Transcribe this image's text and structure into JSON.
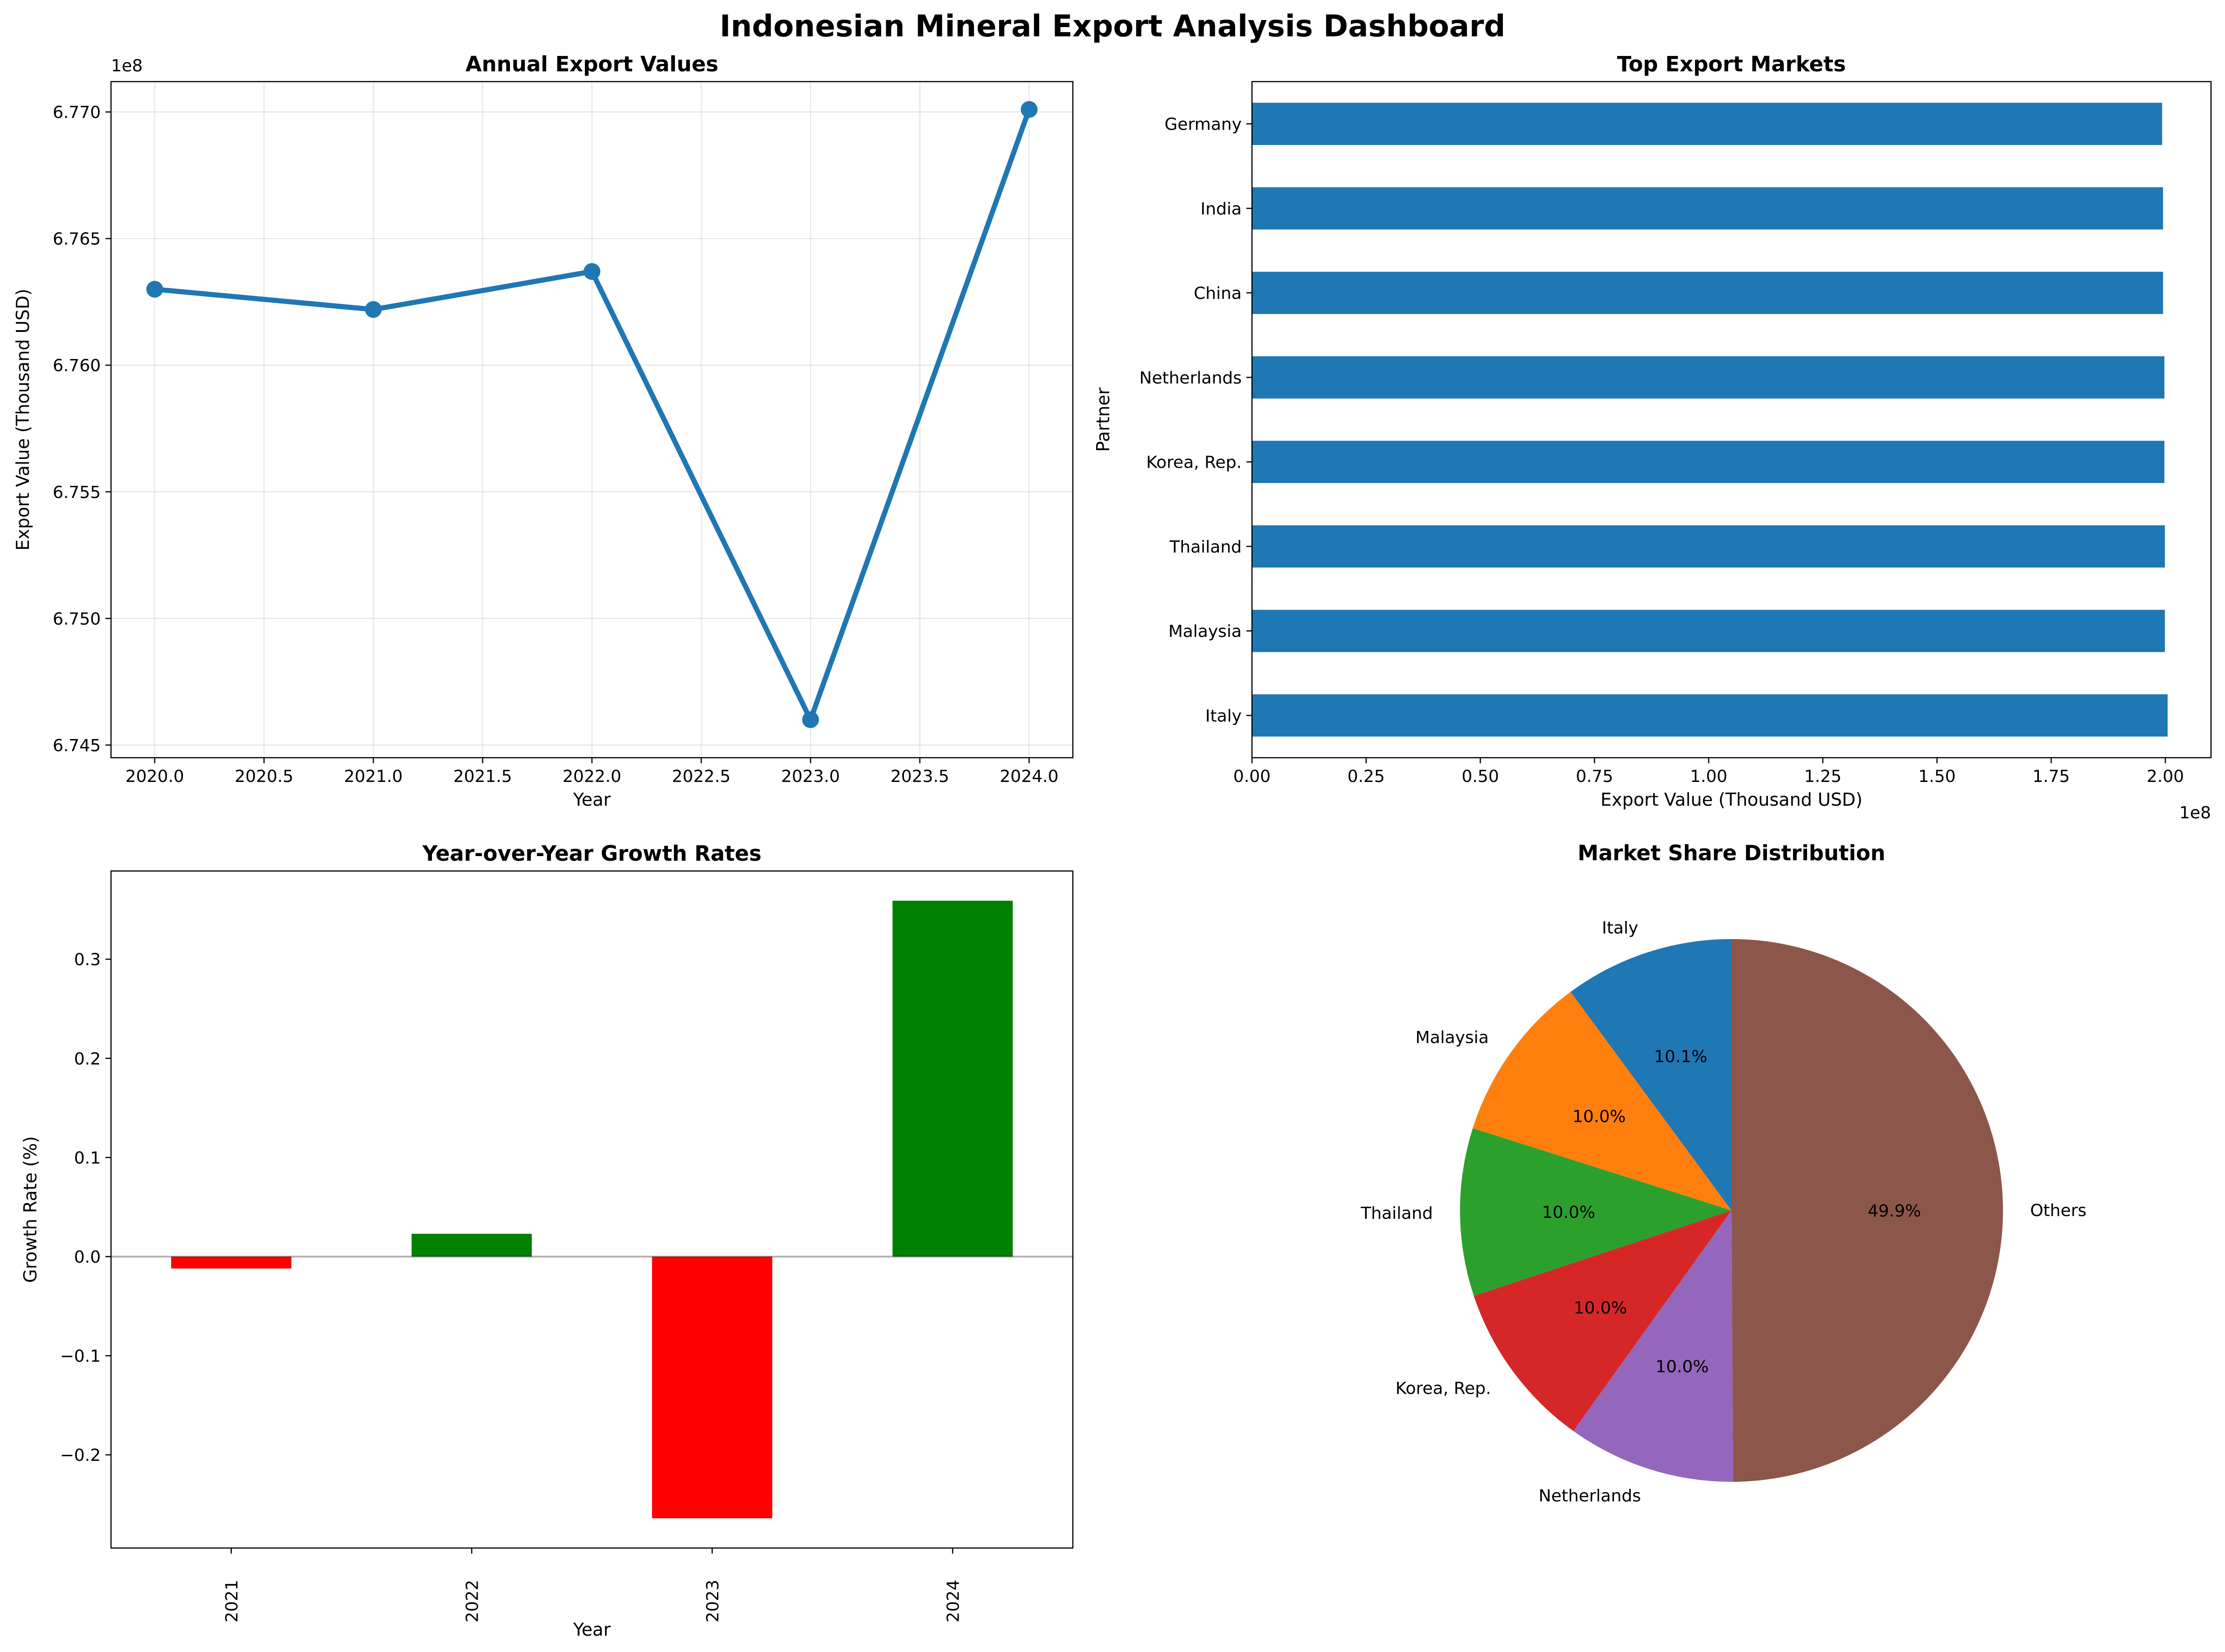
{
  "figure": {
    "title": "Indonesian Mineral Export Analysis Dashboard"
  },
  "chart_data": [
    {
      "type": "line",
      "title": "Annual Export Values",
      "xlabel": "Year",
      "ylabel": "Export Value (Thousand USD)",
      "y_offset_label": "1e8",
      "color": "#1f77b4",
      "x": [
        2020,
        2021,
        2022,
        2023,
        2024
      ],
      "values": [
        6.763,
        6.7622,
        6.7637,
        6.746,
        6.7701
      ],
      "xlim": [
        2019.8,
        2024.2
      ],
      "ylim": [
        6.7445,
        6.7712
      ],
      "xticks": [
        2020.0,
        2020.5,
        2021.0,
        2021.5,
        2022.0,
        2022.5,
        2023.0,
        2023.5,
        2024.0
      ],
      "xtick_labels": [
        "2020.0",
        "2020.5",
        "2021.0",
        "2021.5",
        "2022.0",
        "2022.5",
        "2023.0",
        "2023.5",
        "2024.0"
      ],
      "yticks": [
        6.745,
        6.75,
        6.755,
        6.76,
        6.765,
        6.77
      ],
      "ytick_labels": [
        "6.745",
        "6.750",
        "6.755",
        "6.760",
        "6.765",
        "6.770"
      ],
      "grid": true
    },
    {
      "type": "bar",
      "orientation": "horizontal",
      "title": "Top Export Markets",
      "xlabel": "Export Value (Thousand USD)",
      "ylabel": "Partner",
      "x_offset_label": "1e8",
      "color": "#1f77b4",
      "categories": [
        "Italy",
        "Malaysia",
        "Thailand",
        "Korea, Rep.",
        "Netherlands",
        "China",
        "India",
        "Germany"
      ],
      "values": [
        2.005,
        1.999,
        1.999,
        1.998,
        1.998,
        1.995,
        1.995,
        1.993
      ],
      "xlim": [
        0,
        2.1
      ],
      "xticks": [
        0,
        0.25,
        0.5,
        0.75,
        1.0,
        1.25,
        1.5,
        1.75,
        2.0
      ],
      "xtick_labels": [
        "0.00",
        "0.25",
        "0.50",
        "0.75",
        "1.00",
        "1.25",
        "1.50",
        "1.75",
        "2.00"
      ],
      "grid": false
    },
    {
      "type": "bar",
      "title": "Year-over-Year Growth Rates",
      "xlabel": "Year",
      "ylabel": "Growth Rate (%)",
      "positive_color": "#008000",
      "negative_color": "#ff0000",
      "categories": [
        "2021",
        "2022",
        "2023",
        "2024"
      ],
      "values": [
        -0.012,
        0.023,
        -0.264,
        0.359
      ],
      "ylim": [
        -0.294,
        0.389
      ],
      "yticks": [
        -0.2,
        -0.1,
        0.0,
        0.1,
        0.2,
        0.3
      ],
      "ytick_labels": [
        "−0.2",
        "−0.1",
        "0.0",
        "0.1",
        "0.2",
        "0.3"
      ],
      "grid": false
    },
    {
      "type": "pie",
      "title": "Market Share Distribution",
      "start_angle_deg": 90,
      "direction": "counterclockwise",
      "slices": [
        {
          "label": "Italy",
          "value": 10.1,
          "pct_label": "10.1%",
          "color": "#1f77b4"
        },
        {
          "label": "Malaysia",
          "value": 10.0,
          "pct_label": "10.0%",
          "color": "#ff7f0e"
        },
        {
          "label": "Thailand",
          "value": 10.0,
          "pct_label": "10.0%",
          "color": "#2ca02c"
        },
        {
          "label": "Korea, Rep.",
          "value": 10.0,
          "pct_label": "10.0%",
          "color": "#d62728"
        },
        {
          "label": "Netherlands",
          "value": 10.0,
          "pct_label": "10.0%",
          "color": "#9467bd"
        },
        {
          "label": "Others",
          "value": 49.9,
          "pct_label": "49.9%",
          "color": "#8c564b"
        }
      ]
    }
  ]
}
